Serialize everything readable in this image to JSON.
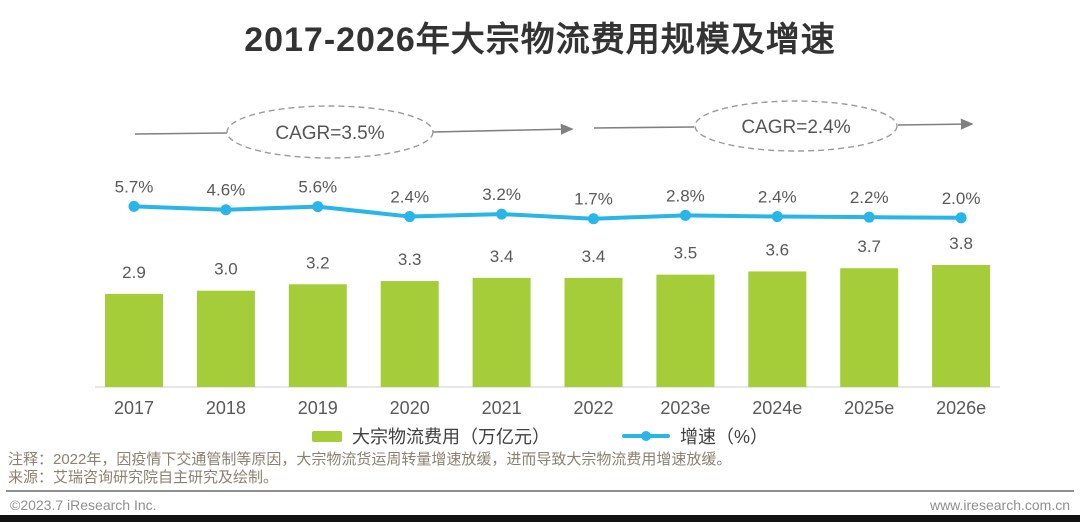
{
  "header": {
    "title": "2017-2026年大宗物流费用规模及增速"
  },
  "chart_data": {
    "type": "bar",
    "subtype": "bar+line combo",
    "categories": [
      "2017",
      "2018",
      "2019",
      "2020",
      "2021",
      "2022",
      "2023e",
      "2024e",
      "2025e",
      "2026e"
    ],
    "series": [
      {
        "name": "大宗物流费用（万亿元）",
        "type": "bar",
        "values": [
          2.9,
          3.0,
          3.2,
          3.3,
          3.4,
          3.4,
          3.5,
          3.6,
          3.7,
          3.8
        ]
      },
      {
        "name": "增速（%）",
        "type": "line",
        "values": [
          5.7,
          4.6,
          5.6,
          2.4,
          3.2,
          1.7,
          2.8,
          2.4,
          2.2,
          2.0
        ]
      }
    ],
    "annotations": [
      {
        "label": "CAGR=3.5%",
        "span": "2017-2022"
      },
      {
        "label": "CAGR=2.4%",
        "span": "2022-2026e"
      }
    ],
    "title": "2017-2026年大宗物流费用规模及增速",
    "xlabel": "",
    "ylabel": "",
    "legend_position": "bottom",
    "grid": false,
    "data_labels_shown": true
  },
  "legend": {
    "bar_label": "大宗物流费用（万亿元）",
    "line_label": "增速（%）"
  },
  "notes": {
    "note": "注释：2022年，因疫情下交通管制等原因，大宗物流货运周转量增速放缓，进而导致大宗物流费用增速放缓。",
    "source": "来源：艾瑞咨询研究院自主研究及绘制。"
  },
  "footer": {
    "copyright": "©2023.7 iResearch Inc.",
    "website": "www.iresearch.com.cn"
  },
  "colors": {
    "bar": "#a5cd39",
    "line": "#29b5e8",
    "label_text": "#595959",
    "title_text": "#333333",
    "annotation": "#808080",
    "note_text": "#8b8170",
    "baseline": "#dddddd",
    "bottom_bar": "#121212"
  }
}
